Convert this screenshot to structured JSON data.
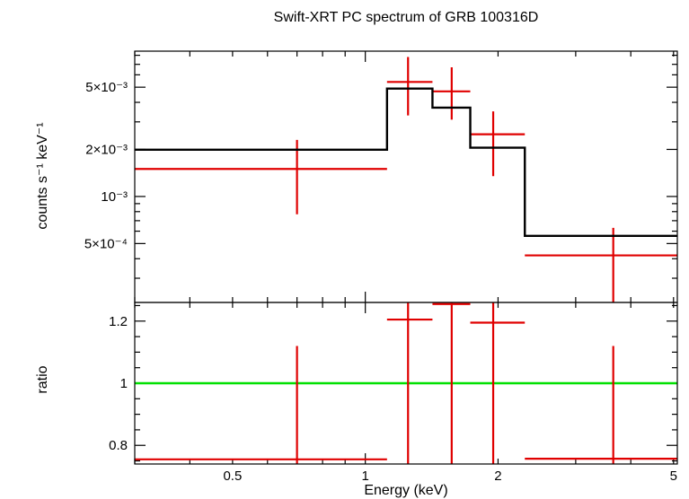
{
  "chart_data": [
    {
      "type": "line",
      "title": "Swift-XRT PC spectrum of GRB 100316D",
      "xlabel": "",
      "ylabel": "counts s⁻¹ keV⁻¹",
      "xscale": "log",
      "yscale": "log",
      "xlim": [
        0.3,
        5.1
      ],
      "ylim": [
        0.00021,
        0.0085
      ],
      "x_tick_labels": [
        "0.5",
        "1",
        "2",
        "5"
      ],
      "y_tick_labels": [
        "5×10⁻³",
        "2×10⁻³",
        "10⁻³",
        "5×10⁻⁴"
      ],
      "y_ticks": [
        0.005,
        0.002,
        0.001,
        0.0005
      ],
      "grid": false,
      "series": [
        {
          "kind": "data-with-errors",
          "color": "#e00000",
          "points": [
            {
              "x": 0.7,
              "xlo": 0.3,
              "xhi": 1.12,
              "y": 0.0015,
              "ylo": 0.00077,
              "yhi": 0.0023
            },
            {
              "x": 1.25,
              "xlo": 1.12,
              "xhi": 1.42,
              "y": 0.0054,
              "ylo": 0.0033,
              "yhi": 0.0078
            },
            {
              "x": 1.57,
              "xlo": 1.42,
              "xhi": 1.73,
              "y": 0.0047,
              "ylo": 0.0031,
              "yhi": 0.0067
            },
            {
              "x": 1.95,
              "xlo": 1.73,
              "xhi": 2.3,
              "y": 0.0025,
              "ylo": 0.00135,
              "yhi": 0.0035
            },
            {
              "x": 3.65,
              "xlo": 2.3,
              "xhi": 5.1,
              "y": 0.00042,
              "ylo": 0.00021,
              "yhi": 0.00063
            }
          ]
        },
        {
          "kind": "model-step",
          "color": "#000000",
          "bins": [
            {
              "xlo": 0.3,
              "xhi": 1.12,
              "y": 0.00199
            },
            {
              "xlo": 1.12,
              "xhi": 1.42,
              "y": 0.0049
            },
            {
              "xlo": 1.42,
              "xhi": 1.73,
              "y": 0.0037
            },
            {
              "xlo": 1.73,
              "xhi": 2.3,
              "y": 0.00205
            },
            {
              "xlo": 2.3,
              "xhi": 5.1,
              "y": 0.00056
            }
          ]
        }
      ]
    },
    {
      "type": "line",
      "title": "",
      "xlabel": "Energy (keV)",
      "ylabel": "ratio",
      "xscale": "log",
      "yscale": "linear",
      "xlim": [
        0.3,
        5.1
      ],
      "ylim": [
        0.74,
        1.26
      ],
      "x_tick_labels": [
        "0.5",
        "1",
        "2",
        "5"
      ],
      "x_ticks": [
        0.5,
        1,
        2,
        5
      ],
      "y_tick_labels": [
        "1.2",
        "1",
        "0.8"
      ],
      "y_ticks": [
        1.2,
        1.0,
        0.8
      ],
      "grid": false,
      "reference_line": {
        "y": 1.0,
        "color": "#00e000"
      },
      "series": [
        {
          "kind": "data-with-errors",
          "color": "#e00000",
          "points": [
            {
              "x": 0.7,
              "xlo": 0.3,
              "xhi": 1.12,
              "y": 0.755,
              "ylo": 0.74,
              "yhi": 1.12
            },
            {
              "x": 1.25,
              "xlo": 1.12,
              "xhi": 1.42,
              "y": 1.205,
              "ylo": 0.74,
              "yhi": 1.26
            },
            {
              "x": 1.57,
              "xlo": 1.42,
              "xhi": 1.73,
              "y": 1.255,
              "ylo": 0.74,
              "yhi": 1.26
            },
            {
              "x": 1.95,
              "xlo": 1.73,
              "xhi": 2.3,
              "y": 1.195,
              "ylo": 0.74,
              "yhi": 1.26
            },
            {
              "x": 3.65,
              "xlo": 2.3,
              "xhi": 5.1,
              "y": 0.757,
              "ylo": 0.74,
              "yhi": 1.12
            }
          ]
        }
      ]
    }
  ]
}
